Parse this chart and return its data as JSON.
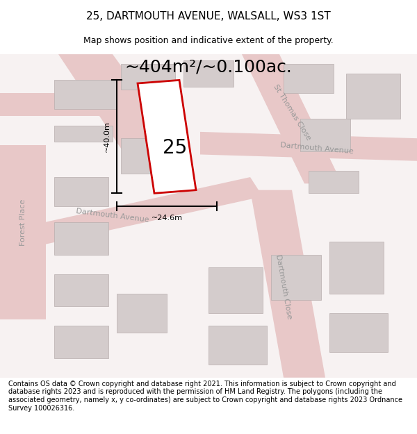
{
  "title": "25, DARTMOUTH AVENUE, WALSALL, WS3 1ST",
  "subtitle": "Map shows position and indicative extent of the property.",
  "area_text": "~404m²/~0.100ac.",
  "dim_width": "~24.6m",
  "dim_height": "~40.0m",
  "label": "25",
  "footer": "Contains OS data © Crown copyright and database right 2021. This information is subject to Crown copyright and database rights 2023 and is reproduced with the permission of HM Land Registry. The polygons (including the associated geometry, namely x, y co-ordinates) are subject to Crown copyright and database rights 2023 Ordnance Survey 100026316.",
  "bg_color": "#ffffff",
  "map_bg": "#f7f2f2",
  "road_color": "#e8c8c8",
  "building_color": "#d4cccc",
  "building_edge": "#b8aeae",
  "plot_color": "#ffffff",
  "plot_edge": "#cc0000",
  "title_fontsize": 11,
  "subtitle_fontsize": 9,
  "area_fontsize": 18,
  "label_fontsize": 20,
  "road_label_fontsize": 8,
  "footer_fontsize": 7
}
